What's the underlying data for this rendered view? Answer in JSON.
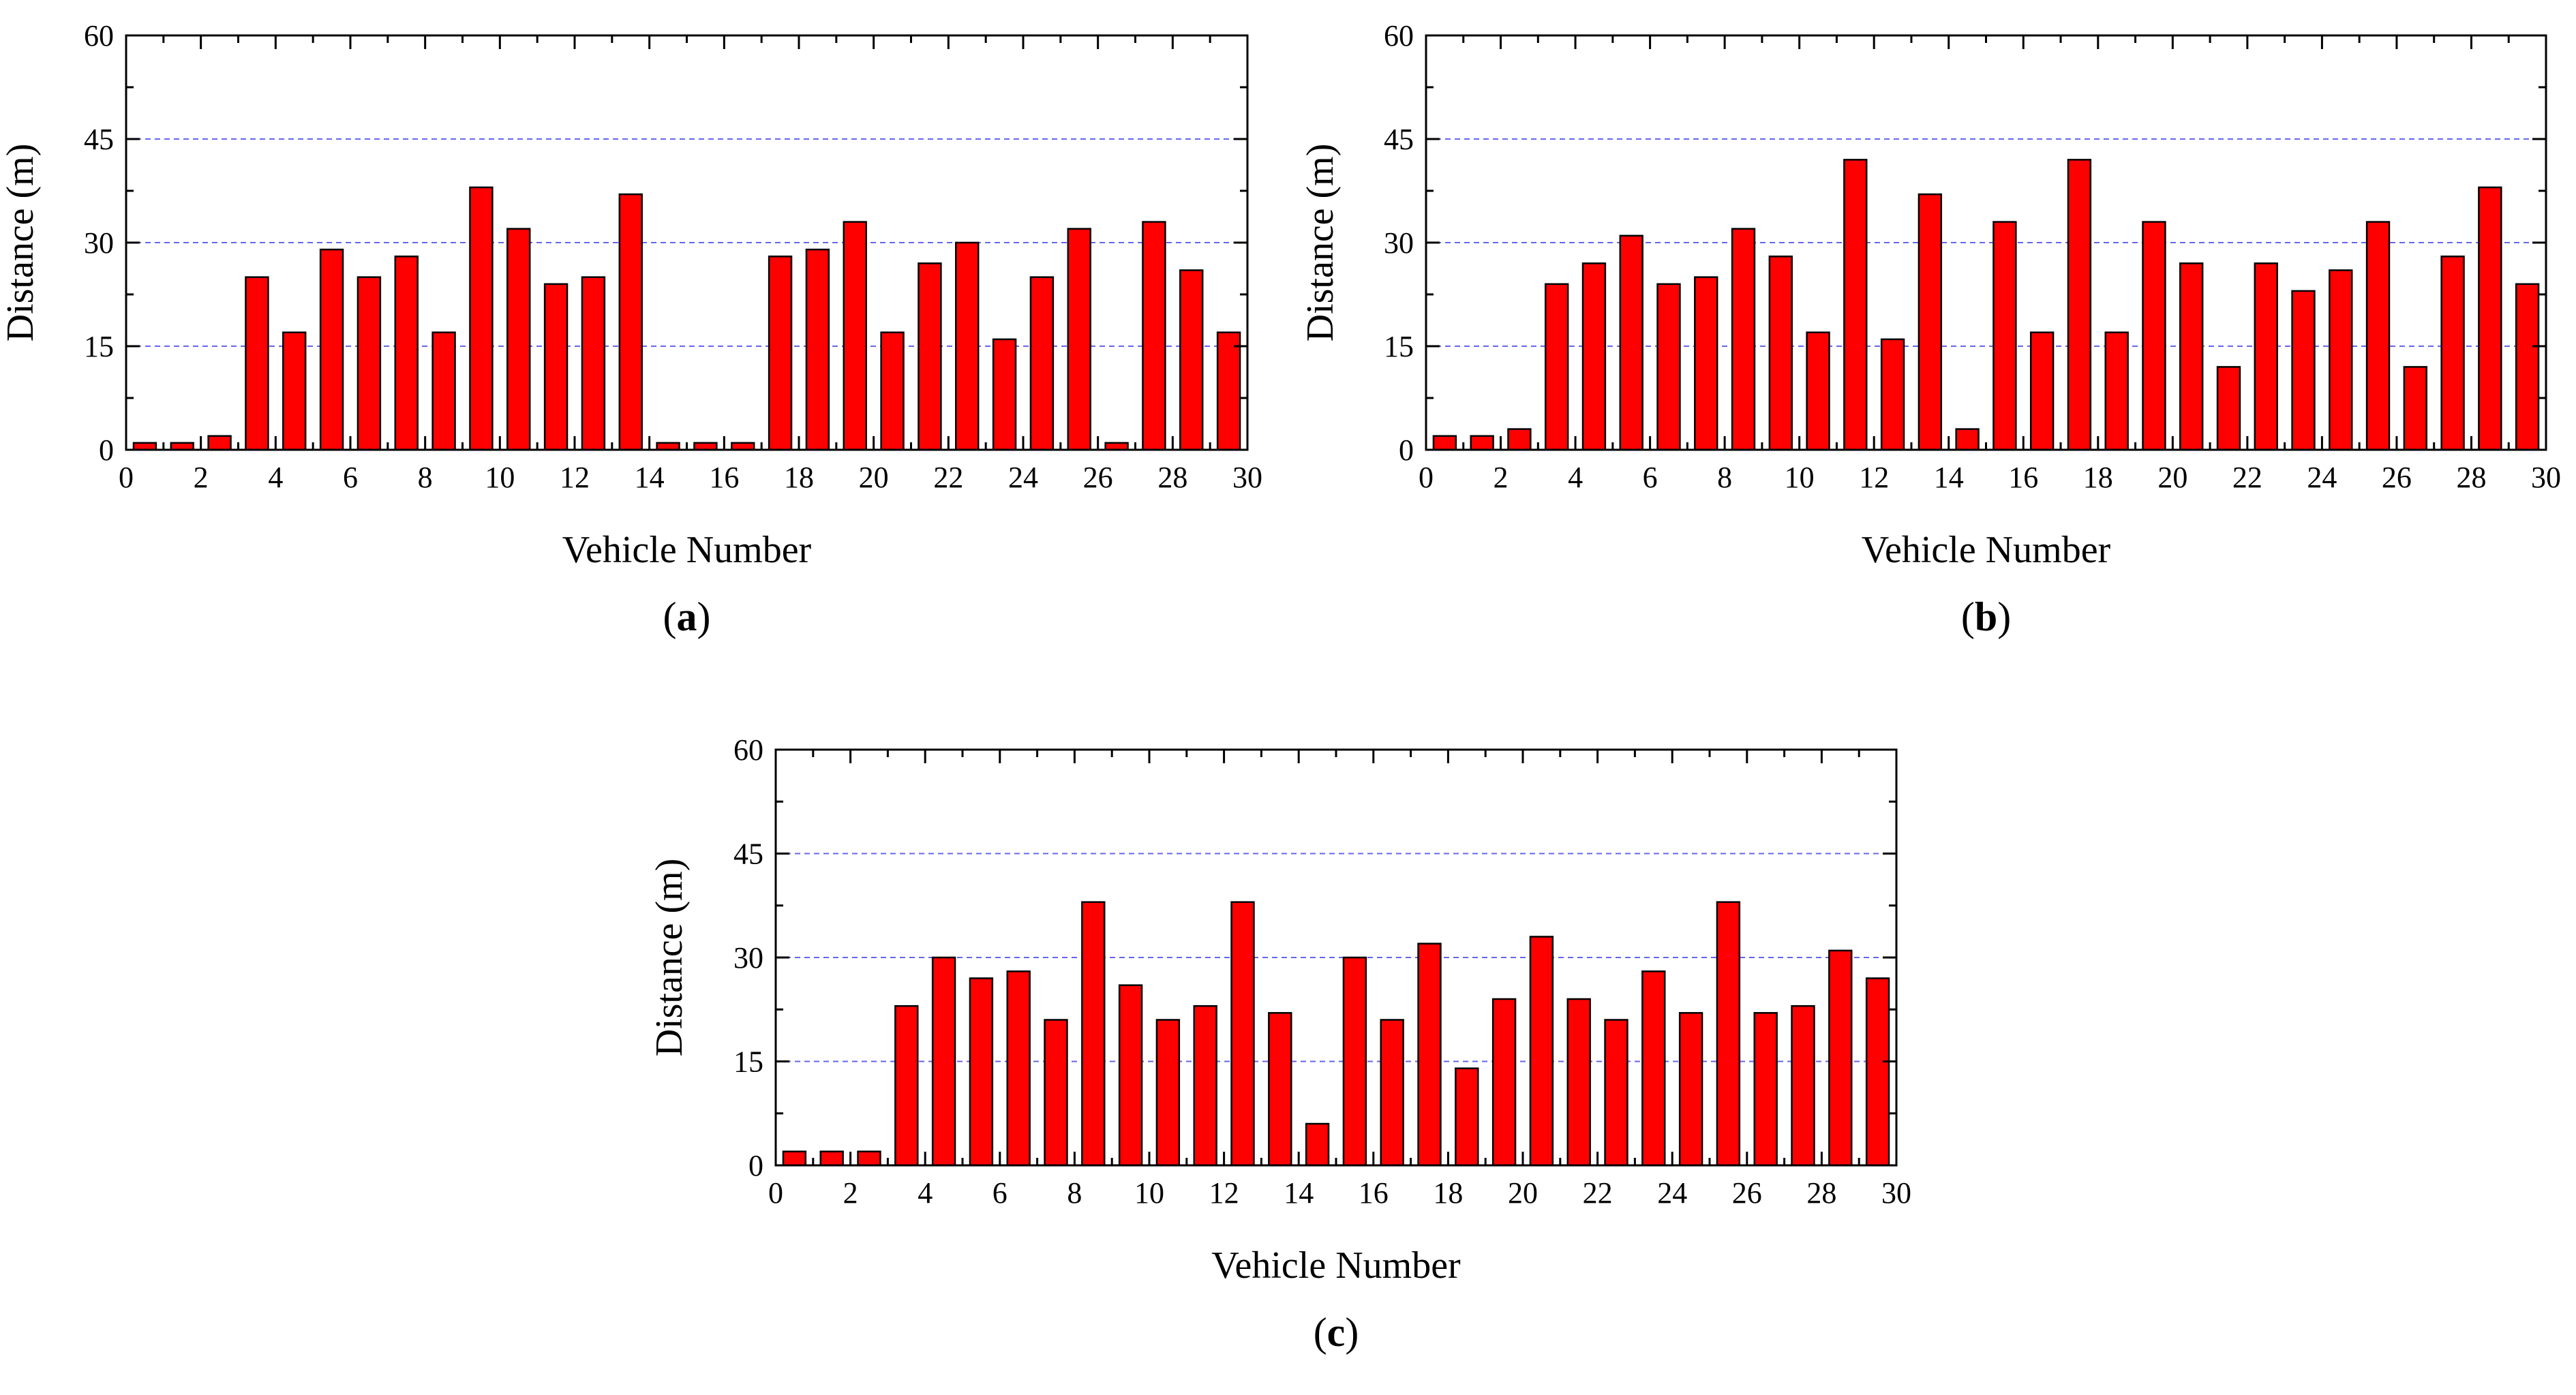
{
  "figure": {
    "colors": {
      "bar_fill": "#ff0000",
      "bar_stroke": "#000000",
      "grid": "#6666ee",
      "axis": "#000000"
    }
  },
  "chart_data": [
    {
      "type": "bar",
      "panel_label": "a",
      "xlabel": "Vehicle Number",
      "ylabel": "Distance (m)",
      "xlim": [
        0,
        30
      ],
      "ylim": [
        0,
        60
      ],
      "x_ticks": [
        0,
        2,
        4,
        6,
        8,
        10,
        12,
        14,
        16,
        18,
        20,
        22,
        24,
        26,
        28,
        30
      ],
      "y_ticks": [
        0,
        15,
        30,
        45,
        60
      ],
      "grid_lines": [
        15,
        30,
        45
      ],
      "categories": [
        1,
        2,
        3,
        4,
        5,
        6,
        7,
        8,
        9,
        10,
        11,
        12,
        13,
        14,
        15,
        16,
        17,
        18,
        19,
        20,
        21,
        22,
        23,
        24,
        25,
        26,
        27,
        28,
        29,
        30
      ],
      "values": [
        1,
        1,
        2,
        25,
        17,
        29,
        25,
        28,
        17,
        38,
        32,
        24,
        25,
        37,
        1,
        1,
        1,
        28,
        29,
        33,
        17,
        27,
        30,
        16,
        25,
        32,
        1,
        33,
        26,
        17
      ]
    },
    {
      "type": "bar",
      "panel_label": "b",
      "xlabel": "Vehicle Number",
      "ylabel": "Distance (m)",
      "xlim": [
        0,
        30
      ],
      "ylim": [
        0,
        60
      ],
      "x_ticks": [
        0,
        2,
        4,
        6,
        8,
        10,
        12,
        14,
        16,
        18,
        20,
        22,
        24,
        26,
        28,
        30
      ],
      "y_ticks": [
        0,
        15,
        30,
        45,
        60
      ],
      "grid_lines": [
        15,
        30,
        45
      ],
      "categories": [
        1,
        2,
        3,
        4,
        5,
        6,
        7,
        8,
        9,
        10,
        11,
        12,
        13,
        14,
        15,
        16,
        17,
        18,
        19,
        20,
        21,
        22,
        23,
        24,
        25,
        26,
        27,
        28,
        29,
        30
      ],
      "values": [
        2,
        2,
        3,
        24,
        27,
        31,
        24,
        25,
        32,
        28,
        17,
        42,
        16,
        37,
        3,
        33,
        17,
        42,
        17,
        33,
        27,
        12,
        27,
        23,
        26,
        33,
        12,
        28,
        38,
        24
      ]
    },
    {
      "type": "bar",
      "panel_label": "c",
      "xlabel": "Vehicle Number",
      "ylabel": "Distance (m)",
      "xlim": [
        0,
        30
      ],
      "ylim": [
        0,
        60
      ],
      "x_ticks": [
        0,
        2,
        4,
        6,
        8,
        10,
        12,
        14,
        16,
        18,
        20,
        22,
        24,
        26,
        28,
        30
      ],
      "y_ticks": [
        0,
        15,
        30,
        45,
        60
      ],
      "grid_lines": [
        15,
        30,
        45
      ],
      "categories": [
        1,
        2,
        3,
        4,
        5,
        6,
        7,
        8,
        9,
        10,
        11,
        12,
        13,
        14,
        15,
        16,
        17,
        18,
        19,
        20,
        21,
        22,
        23,
        24,
        25,
        26,
        27,
        28,
        29,
        30
      ],
      "values": [
        2,
        2,
        2,
        23,
        30,
        27,
        28,
        21,
        38,
        26,
        21,
        23,
        38,
        22,
        6,
        30,
        21,
        32,
        14,
        24,
        33,
        24,
        21,
        28,
        22,
        38,
        22,
        23,
        31,
        27
      ]
    }
  ]
}
